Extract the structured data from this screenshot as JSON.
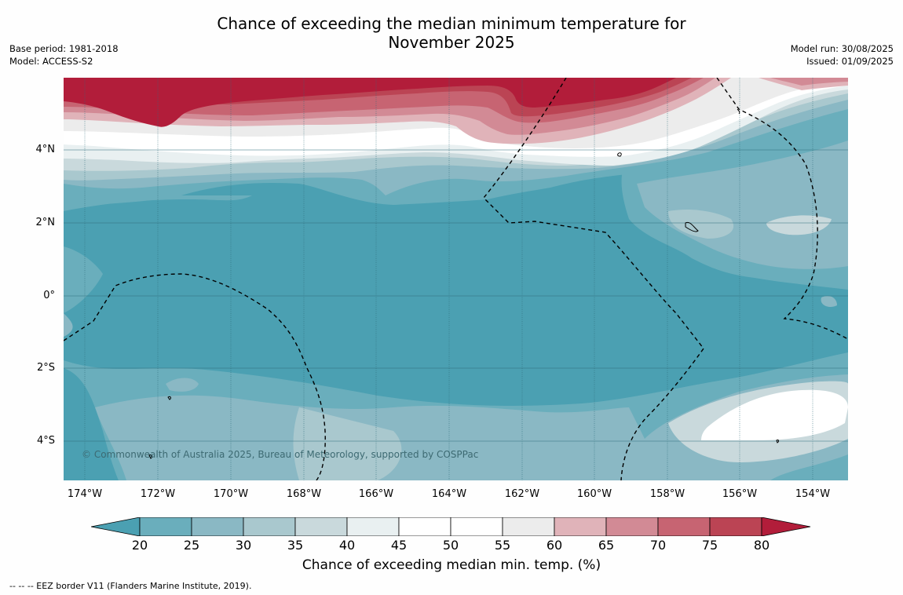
{
  "title_line1": "Chance of exceeding the median minimum temperature for",
  "title_line2": "November 2025",
  "meta_left": [
    "Base period: 1981-2018",
    "Model: ACCESS-S2"
  ],
  "meta_right": [
    "Model run: 30/08/2025",
    "Issued: 01/09/2025"
  ],
  "lat_labels": [
    "4°N",
    "2°N",
    "0°",
    "2°S",
    "4°S"
  ],
  "lon_labels": [
    "174°W",
    "172°W",
    "170°W",
    "168°W",
    "166°W",
    "164°W",
    "162°W",
    "160°W",
    "158°W",
    "156°W",
    "154°W"
  ],
  "copyright": "© Commonwealth of Australia 2025, Bureau of Meteorology, supported by COSPPac",
  "colorbar": {
    "ticks": [
      "20",
      "25",
      "30",
      "35",
      "40",
      "45",
      "50",
      "55",
      "60",
      "65",
      "70",
      "75",
      "80"
    ],
    "colors": [
      "#4ba0b2",
      "#6aaebc",
      "#8ab8c4",
      "#a9c8ce",
      "#c9d9dc",
      "#e9f0f1",
      "#ffffff",
      "#ffffff",
      "#ececec",
      "#e0b3b9",
      "#d28a95",
      "#c76472",
      "#bb4454",
      "#b21d3a"
    ],
    "label": "Chance of exceeding median min. temp. (%)"
  },
  "footer": "--  --  -- EEZ border V11 (Flanders Marine Institute, 2019)."
}
